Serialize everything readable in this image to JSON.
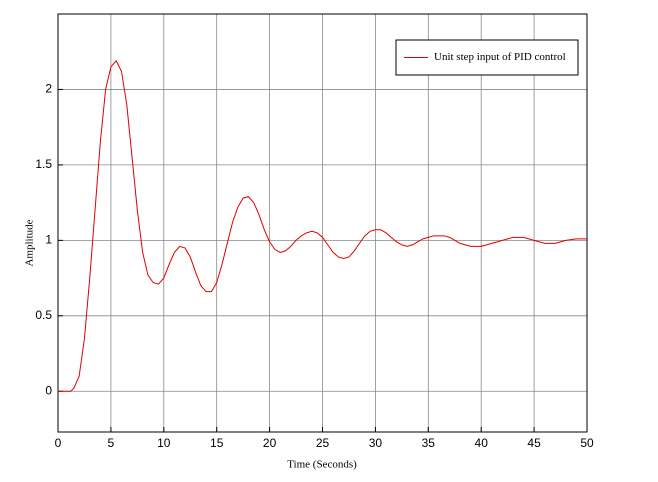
{
  "chart_data": {
    "type": "line",
    "x_label": "Time (Seconds)",
    "y_label": "Amplitude",
    "x": [
      0,
      1.2,
      1.5,
      2,
      2.5,
      3,
      3.5,
      4,
      4.5,
      5,
      5.5,
      6,
      6.5,
      7,
      7.5,
      8,
      8.5,
      9,
      9.5,
      10,
      10.5,
      11,
      11.5,
      12,
      12.5,
      13,
      13.5,
      14,
      14.5,
      15,
      15.5,
      16,
      16.5,
      17,
      17.5,
      18,
      18.5,
      19,
      19.5,
      20,
      20.5,
      21,
      21.5,
      22,
      22.5,
      23,
      23.5,
      24,
      24.5,
      25,
      25.5,
      26,
      26.5,
      27,
      27.5,
      28,
      28.5,
      29,
      29.5,
      30,
      30.5,
      31,
      31.5,
      32,
      32.5,
      33,
      33.5,
      34,
      34.5,
      35,
      35.5,
      36,
      36.5,
      37,
      37.5,
      38,
      38.5,
      39,
      39.5,
      40,
      40.5,
      41,
      42,
      43,
      43.5,
      44,
      45,
      46,
      46.5,
      47,
      48,
      49,
      50
    ],
    "series": [
      {
        "name": "Unit step input of PID control",
        "color": "#e00000",
        "values": [
          0,
          0,
          0.02,
          0.1,
          0.35,
          0.75,
          1.2,
          1.65,
          2.0,
          2.15,
          2.19,
          2.12,
          1.9,
          1.55,
          1.2,
          0.92,
          0.77,
          0.72,
          0.71,
          0.75,
          0.84,
          0.92,
          0.96,
          0.95,
          0.89,
          0.79,
          0.7,
          0.66,
          0.66,
          0.72,
          0.84,
          0.98,
          1.12,
          1.22,
          1.28,
          1.29,
          1.25,
          1.17,
          1.07,
          0.99,
          0.94,
          0.92,
          0.93,
          0.96,
          1.0,
          1.03,
          1.05,
          1.06,
          1.05,
          1.02,
          0.97,
          0.92,
          0.89,
          0.88,
          0.89,
          0.93,
          0.98,
          1.03,
          1.06,
          1.07,
          1.07,
          1.05,
          1.02,
          0.99,
          0.97,
          0.96,
          0.97,
          0.99,
          1.01,
          1.02,
          1.03,
          1.03,
          1.03,
          1.02,
          1.0,
          0.98,
          0.97,
          0.96,
          0.96,
          0.96,
          0.97,
          0.98,
          1.0,
          1.02,
          1.02,
          1.02,
          1.0,
          0.98,
          0.98,
          0.98,
          1.0,
          1.01,
          1.01
        ]
      }
    ],
    "xlim": [
      0,
      50
    ],
    "xticks": [
      0,
      5,
      10,
      15,
      20,
      25,
      30,
      35,
      40,
      45,
      50
    ],
    "ylim": [
      -0.27,
      2.5
    ],
    "yticks": [
      0,
      0.5,
      1,
      1.5,
      2
    ],
    "grid": true,
    "legend": "upper right"
  }
}
